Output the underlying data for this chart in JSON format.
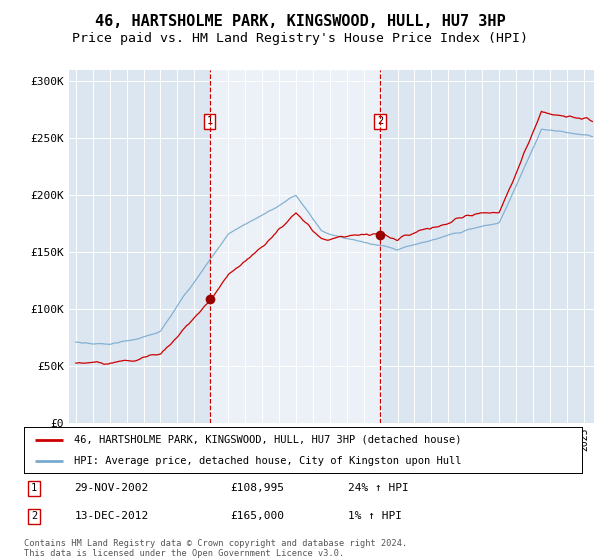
{
  "title": "46, HARTSHOLME PARK, KINGSWOOD, HULL, HU7 3HP",
  "subtitle": "Price paid vs. HM Land Registry's House Price Index (HPI)",
  "title_fontsize": 11,
  "subtitle_fontsize": 9.5,
  "ylim": [
    0,
    310000
  ],
  "yticks": [
    0,
    50000,
    100000,
    150000,
    200000,
    250000,
    300000
  ],
  "ytick_labels": [
    "£0",
    "£50K",
    "£100K",
    "£150K",
    "£200K",
    "£250K",
    "£300K"
  ],
  "background_color": "#ffffff",
  "plot_bg_color": "#dce6f0",
  "shading_color": "#dce6f0",
  "sale1": {
    "date_num": 2002.91,
    "price": 108995,
    "label": "1",
    "date_str": "29-NOV-2002",
    "pct": "24% ↑ HPI"
  },
  "sale2": {
    "date_num": 2012.96,
    "price": 165000,
    "label": "2",
    "date_str": "13-DEC-2012",
    "pct": "1% ↑ HPI"
  },
  "legend_entry1": "46, HARTSHOLME PARK, KINGSWOOD, HULL, HU7 3HP (detached house)",
  "legend_entry2": "HPI: Average price, detached house, City of Kingston upon Hull",
  "footer": "Contains HM Land Registry data © Crown copyright and database right 2024.\nThis data is licensed under the Open Government Licence v3.0.",
  "line_color_red": "#cc0000",
  "line_color_blue": "#7aabcf",
  "dashed_line_color": "#cc0000",
  "sale_marker_color": "#990000"
}
